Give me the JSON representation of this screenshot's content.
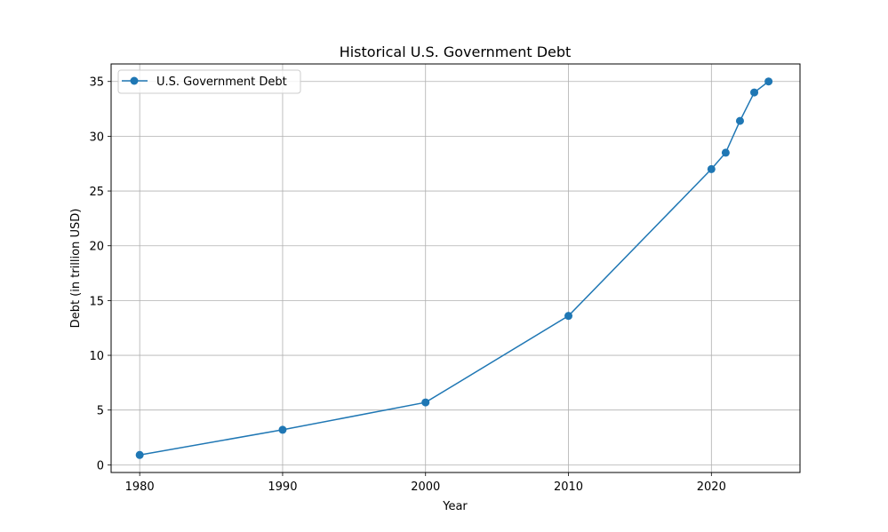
{
  "chart_data": {
    "type": "line",
    "title": "Historical U.S. Government Debt",
    "xlabel": "Year",
    "ylabel": "Debt (in trillion USD)",
    "xlim": [
      1978,
      2026.2
    ],
    "ylim": [
      -0.7,
      36.6
    ],
    "xticks": [
      1980,
      1990,
      2000,
      2010,
      2020
    ],
    "yticks": [
      0,
      5,
      10,
      15,
      20,
      25,
      30,
      35
    ],
    "grid": true,
    "legend_position": "top-left",
    "series": [
      {
        "name": "U.S. Government Debt",
        "color": "#1f77b4",
        "marker": "circle",
        "x": [
          1980,
          1990,
          2000,
          2010,
          2020,
          2021,
          2022,
          2023,
          2024
        ],
        "y": [
          0.9,
          3.2,
          5.7,
          13.6,
          27.0,
          28.5,
          31.4,
          34.0,
          35.0
        ]
      }
    ]
  }
}
